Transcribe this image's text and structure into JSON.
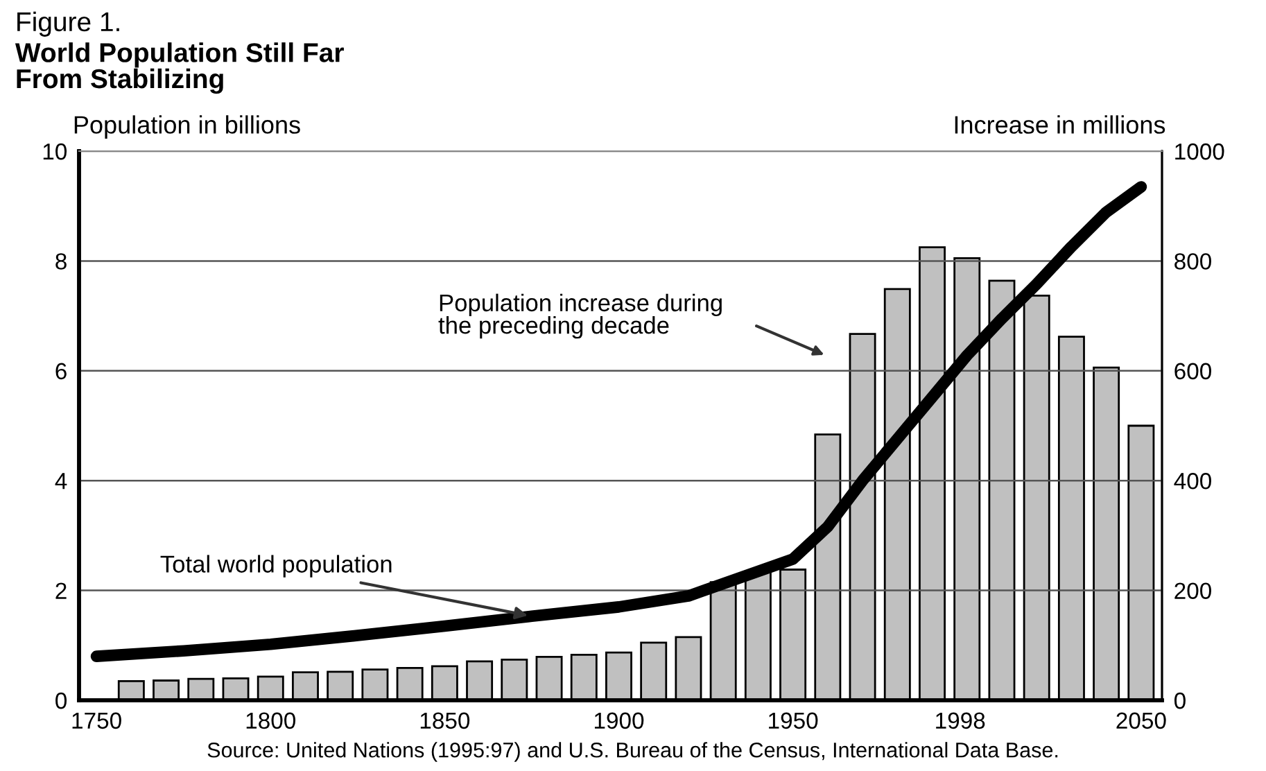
{
  "chart_data": {
    "type": "bar",
    "title": "Figure 1.",
    "subtitle": "World Population Still Far\nFrom Stabilizing",
    "ylabel": "Population in billions",
    "y2label": "Increase in millions",
    "x": [
      1760,
      1770,
      1780,
      1790,
      1800,
      1810,
      1820,
      1830,
      1840,
      1850,
      1860,
      1870,
      1880,
      1890,
      1900,
      1910,
      1920,
      1930,
      1940,
      1950,
      1960,
      1970,
      1980,
      1990,
      2000,
      2010,
      2020,
      2030,
      2040,
      2050
    ],
    "series": [
      {
        "axis": "y2",
        "color": "#c0c0c0",
        "values": [
          35,
          36,
          39,
          40,
          43,
          51,
          52,
          56,
          59,
          62,
          71,
          74,
          79,
          83,
          87,
          105,
          115,
          215,
          233,
          238,
          484,
          667,
          749,
          825,
          805,
          764,
          737,
          662,
          606,
          500
        ]
      },
      {
        "type": "line",
        "color": "#000000",
        "x": [
          1750,
          1775,
          1800,
          1825,
          1850,
          1875,
          1900,
          1920,
          1950,
          1960,
          1970,
          1980,
          1990,
          2000,
          2010,
          2020,
          2030,
          2040,
          2050
        ],
        "values": [
          0.8,
          0.9,
          1.02,
          1.18,
          1.35,
          1.53,
          1.7,
          1.9,
          2.57,
          3.16,
          4.0,
          4.76,
          5.52,
          6.28,
          6.95,
          7.58,
          8.26,
          8.89,
          9.35
        ]
      }
    ],
    "xlim": [
      1745,
      2056
    ],
    "xticks": [
      1750,
      1800,
      1850,
      1900,
      1950,
      {
        "value": 1998,
        "label": "1998"
      },
      2050
    ],
    "ylim": [
      0,
      10
    ],
    "yticks": [
      0,
      2,
      4,
      6,
      8,
      10
    ],
    "y2lim": [
      0,
      1000
    ],
    "y2ticks": [
      0,
      200,
      400,
      600,
      800,
      1000
    ],
    "grid": "y",
    "annotations": [
      "Population increase during\nthe preceding decade",
      {
        "text": "Total world population",
        "x": 1875,
        "y": 1.53
      },
      "Source: United Nations (1995:97) and U.S. Bureau of the Census, International Data Base."
    ]
  }
}
